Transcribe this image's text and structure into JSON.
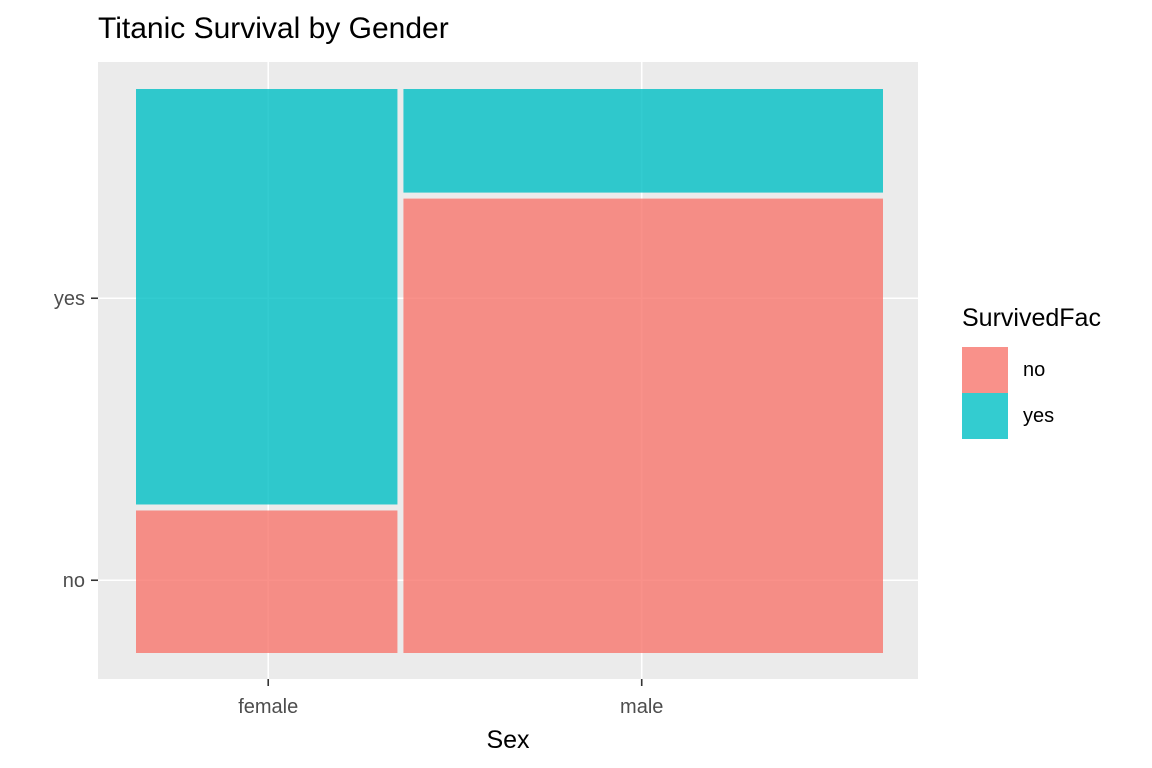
{
  "chart_data": {
    "type": "mosaic",
    "title": "Titanic Survival by Gender",
    "xlabel": "Sex",
    "ylabel": "",
    "categories": [
      "female",
      "male"
    ],
    "y_tick_labels": [
      "no",
      "yes"
    ],
    "column_proportions": [
      0.354,
      0.646
    ],
    "series": [
      {
        "name": "no",
        "color": "#F8766D",
        "values": [
          0.258,
          0.811
        ]
      },
      {
        "name": "yes",
        "color": "#00BFC4",
        "values": [
          0.742,
          0.189
        ]
      }
    ],
    "ylim": [
      0,
      1
    ],
    "legend_title": "SurvivedFac",
    "legend_position": "right",
    "grid": true
  }
}
